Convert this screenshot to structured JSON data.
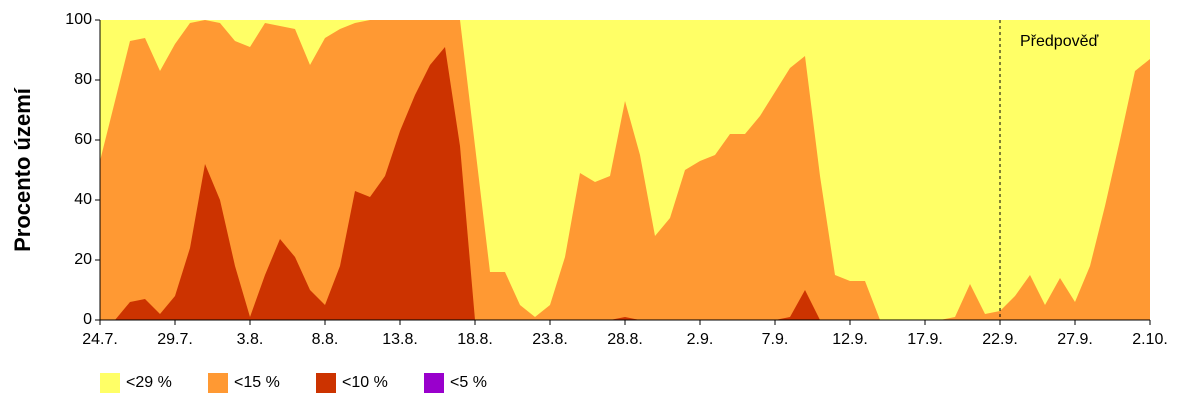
{
  "chart_data": {
    "type": "area",
    "y_label": "Procento území",
    "categories": [
      "24.7.",
      null,
      null,
      null,
      null,
      "29.7.",
      null,
      null,
      null,
      null,
      "3.8.",
      null,
      null,
      null,
      null,
      "8.8.",
      null,
      null,
      null,
      null,
      "13.8.",
      null,
      null,
      null,
      null,
      "18.8.",
      null,
      null,
      null,
      null,
      "23.8.",
      null,
      null,
      null,
      null,
      "28.8.",
      null,
      null,
      null,
      null,
      "2.9.",
      null,
      null,
      null,
      null,
      "7.9.",
      null,
      null,
      null,
      null,
      "12.9.",
      null,
      null,
      null,
      null,
      "17.9.",
      null,
      null,
      null,
      null,
      "22.9.",
      null,
      null,
      null,
      null,
      "27.9.",
      null,
      null,
      null,
      null,
      "2.10."
    ],
    "series": [
      {
        "name": "<29 %",
        "color": "#ffff66",
        "values": [
          100,
          100,
          100,
          100,
          100,
          100,
          100,
          100,
          100,
          100,
          100,
          100,
          100,
          100,
          100,
          100,
          100,
          100,
          100,
          100,
          100,
          100,
          100,
          100,
          100,
          100,
          100,
          100,
          100,
          100,
          100,
          100,
          100,
          100,
          100,
          100,
          100,
          100,
          100,
          100,
          100,
          100,
          100,
          100,
          100,
          100,
          100,
          100,
          100,
          100,
          100,
          100,
          100,
          100,
          100,
          100,
          100,
          100,
          100,
          100,
          100,
          100,
          100,
          100,
          100,
          100,
          100,
          100,
          100,
          100,
          100
        ]
      },
      {
        "name": "<15 %",
        "color": "#ff9933",
        "values": [
          53,
          73,
          93,
          94,
          83,
          92,
          99,
          100,
          99,
          93,
          91,
          99,
          98,
          97,
          85,
          94,
          97,
          99,
          100,
          100,
          100,
          100,
          100,
          100,
          100,
          58,
          16,
          16,
          5,
          1,
          5,
          21,
          49,
          46,
          48,
          73,
          55,
          28,
          34,
          50,
          53,
          55,
          62,
          62,
          68,
          76,
          84,
          88,
          48,
          15,
          13,
          13,
          0,
          0,
          0,
          0,
          0,
          1,
          12,
          2,
          3,
          8,
          15,
          5,
          14,
          6,
          18,
          38,
          60,
          83,
          87
        ]
      },
      {
        "name": "<10 %",
        "color": "#cc3300",
        "values": [
          0,
          0,
          6,
          7,
          2,
          8,
          24,
          52,
          40,
          18,
          1,
          15,
          27,
          21,
          10,
          5,
          18,
          43,
          41,
          48,
          63,
          75,
          85,
          91,
          58,
          0,
          0,
          0,
          0,
          0,
          0,
          0,
          0,
          0,
          0,
          1,
          0,
          0,
          0,
          0,
          0,
          0,
          0,
          0,
          0,
          0,
          1,
          10,
          0,
          0,
          0,
          0,
          0,
          0,
          0,
          0,
          0,
          0,
          0,
          0,
          0,
          0,
          0,
          0,
          0,
          0,
          0,
          0,
          0,
          0,
          0
        ]
      },
      {
        "name": "<5 %",
        "color": "#9900cc",
        "values": [
          0,
          0,
          0,
          0,
          0,
          0,
          0,
          0,
          0,
          0,
          0,
          0,
          0,
          0,
          0,
          0,
          0,
          0,
          0,
          0,
          0,
          0,
          0,
          0,
          0,
          0,
          0,
          0,
          0,
          0,
          0,
          0,
          0,
          0,
          0,
          0,
          0,
          0,
          0,
          0,
          0,
          0,
          0,
          0,
          0,
          0,
          0,
          0,
          0,
          0,
          0,
          0,
          0,
          0,
          0,
          0,
          0,
          0,
          0,
          0,
          0,
          0,
          0,
          0,
          0,
          0,
          0,
          0,
          0,
          0,
          0
        ]
      }
    ],
    "ylim": [
      0,
      100
    ],
    "yticks": [
      0,
      20,
      40,
      60,
      80,
      100
    ],
    "grid": false,
    "forecast": {
      "label": "Předpověď",
      "at": "22.9."
    },
    "legend": "bottom-left"
  }
}
